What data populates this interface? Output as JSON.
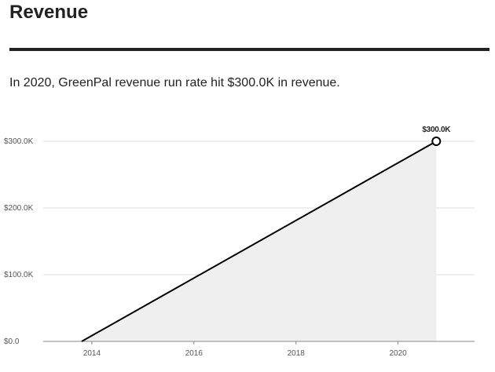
{
  "header": {
    "title": "Revenue",
    "subtitle": "In 2020, GreenPal revenue run rate hit $300.0K in revenue."
  },
  "chart_data": {
    "type": "area",
    "title": "Revenue",
    "subtitle": "In 2020, GreenPal revenue run rate hit $300.0K in revenue.",
    "xlabel": "",
    "ylabel": "",
    "x_ticks": [
      "2014",
      "2016",
      "2018",
      "2020"
    ],
    "y_ticks": [
      "$0.0",
      "$100.0K",
      "$200.0K",
      "$300.0K"
    ],
    "ylim": [
      0,
      300000
    ],
    "grid": true,
    "series": [
      {
        "points": [
          {
            "x": 2013.8,
            "y": 0
          },
          {
            "x": 2020.75,
            "y": 300000
          }
        ]
      }
    ],
    "annotations": [
      {
        "text": "$300.0K",
        "x": 2020.75,
        "y": 300000
      }
    ],
    "colors": {
      "line": "#000000",
      "fill": "#efefef",
      "grid": "#dddddd",
      "axis": "#888888"
    }
  }
}
